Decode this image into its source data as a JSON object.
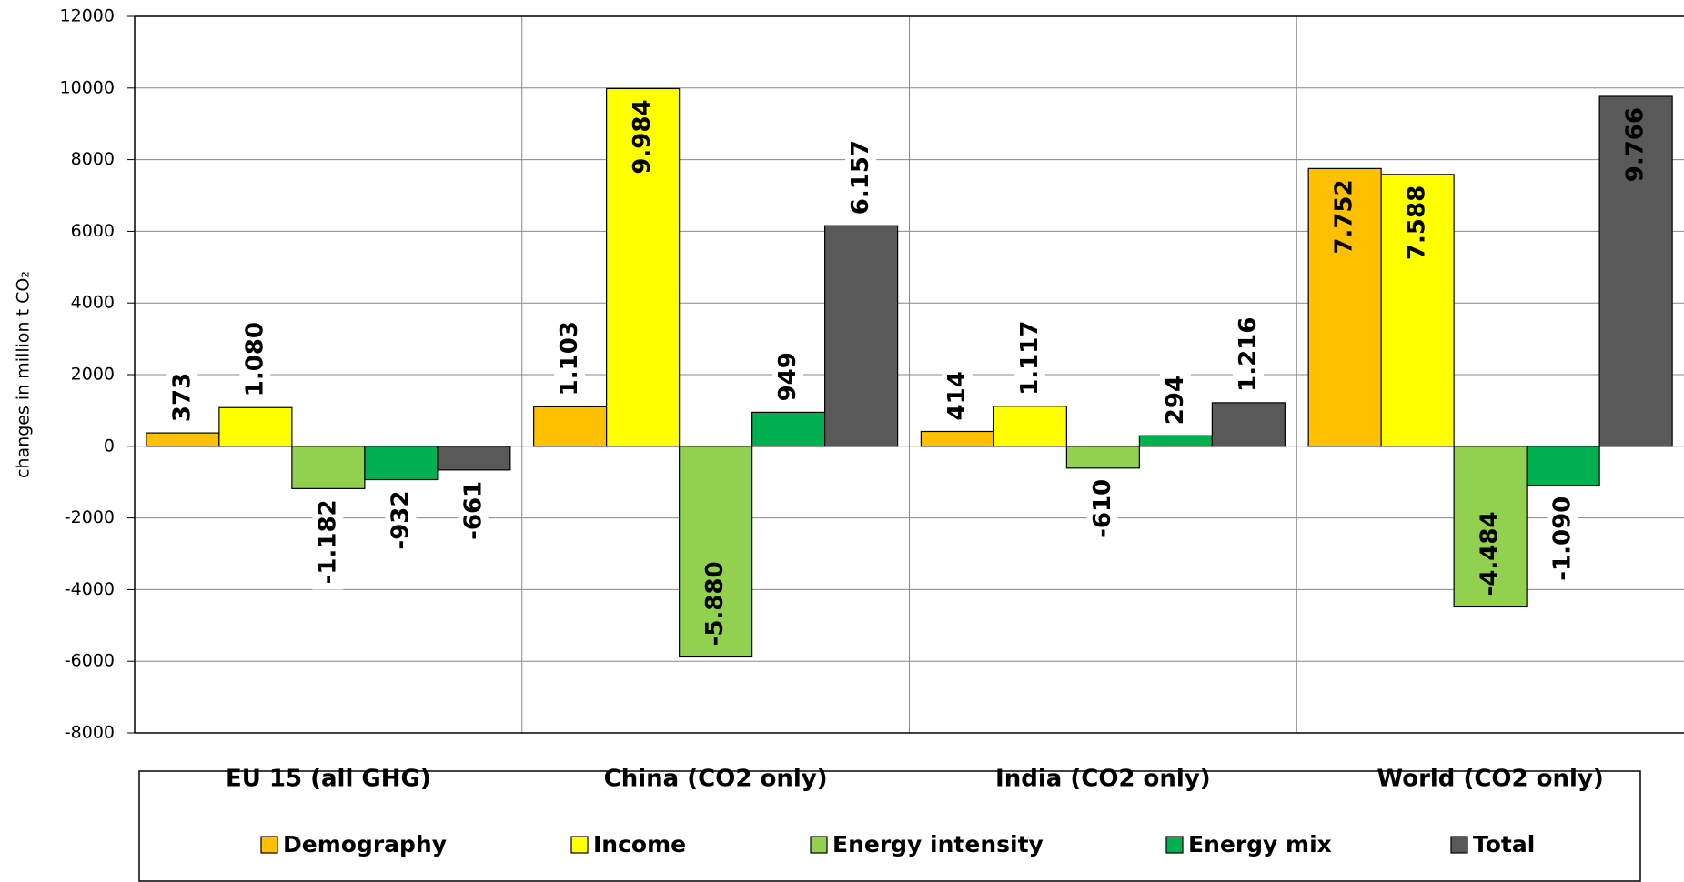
{
  "chart_data": {
    "type": "bar",
    "y_label": "changes in million  t CO₂",
    "categories": [
      "EU 15 (all GHG)",
      "China (CO2 only)",
      "India (CO2 only)",
      "World (CO2 only)"
    ],
    "series": [
      {
        "name": "Demography",
        "color": "#FFC000",
        "values": [
          373,
          1103,
          414,
          7752
        ],
        "value_labels": [
          "373",
          "1.103",
          "414",
          "7.752"
        ]
      },
      {
        "name": "Income",
        "color": "#FFFF00",
        "values": [
          1080,
          9984,
          1117,
          7588
        ],
        "value_labels": [
          "1.080",
          "9.984",
          "1.117",
          "7.588"
        ]
      },
      {
        "name": "Energy intensity",
        "color": "#92D050",
        "values": [
          -1182,
          -5880,
          -610,
          -4484
        ],
        "value_labels": [
          "-1.182",
          "-5.880",
          "-610",
          "-4.484"
        ]
      },
      {
        "name": "Energy mix",
        "color": "#00B050",
        "values": [
          -932,
          949,
          294,
          -1090
        ],
        "value_labels": [
          "-932",
          "949",
          "294",
          "-1.090"
        ]
      },
      {
        "name": "Total",
        "color": "#595959",
        "values": [
          -661,
          6157,
          1216,
          9766
        ],
        "value_labels": [
          "-661",
          "6.157",
          "1.216",
          "9.766"
        ]
      }
    ],
    "ylim": [
      -8000,
      12000
    ],
    "yticks": [
      -8000,
      -6000,
      -4000,
      -2000,
      0,
      2000,
      4000,
      6000,
      8000,
      10000,
      12000
    ],
    "grid": true
  }
}
